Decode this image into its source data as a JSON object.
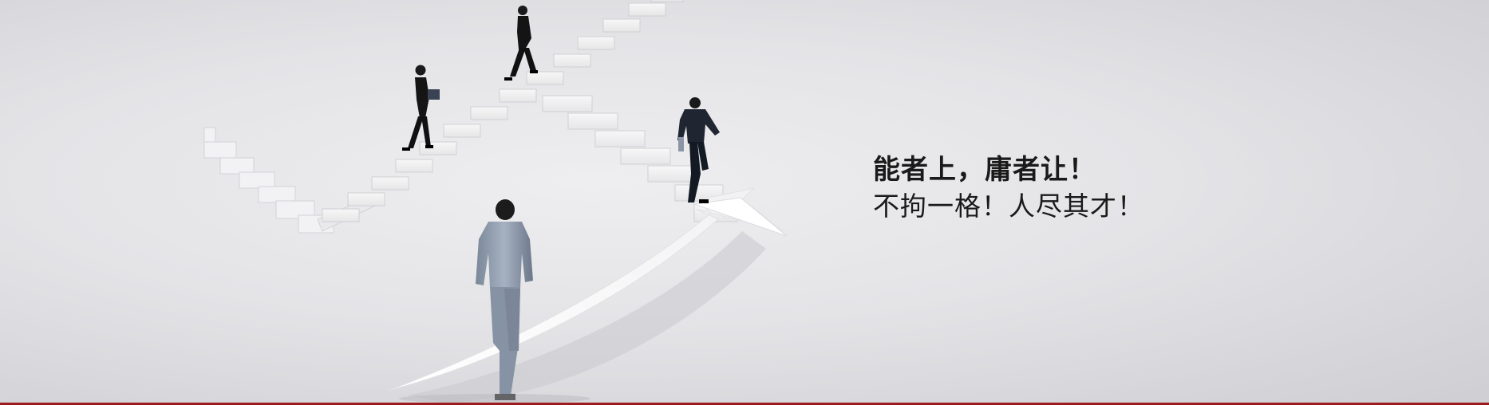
{
  "banner": {
    "headline": "能者上，庸者让！",
    "subline": "不拘一格！人尽其才！",
    "accent_color": "#9b1b1f",
    "background_color": "#e4e4e7"
  },
  "illustration": {
    "subject": "business people climbing staircases and walking along an upward arrow",
    "figures": 4
  }
}
